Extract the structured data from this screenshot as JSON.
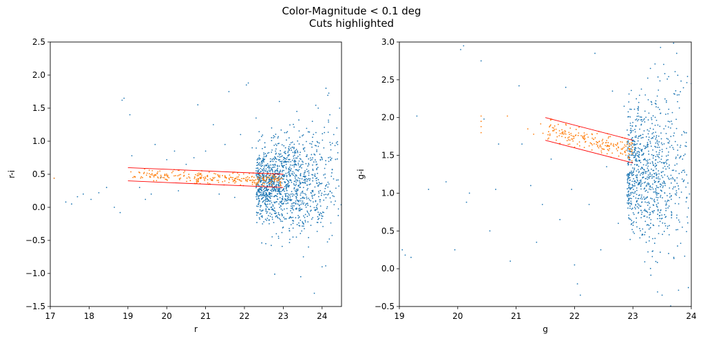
{
  "figure": {
    "title_line1": "Color-Magnitude < 0.1 deg",
    "title_line2": "Cuts highlighted"
  },
  "colors": {
    "all_stars": "#1f77b4",
    "selected_stars": "#ff7f0e",
    "cut_lines": "#ff0000"
  },
  "chart_data": [
    {
      "type": "scatter",
      "xlabel": "r",
      "ylabel": "r-i",
      "xlim": [
        17,
        24.5
      ],
      "ylim": [
        -1.5,
        2.5
      ],
      "x_ticks": [
        "17",
        "18",
        "19",
        "20",
        "21",
        "22",
        "23",
        "24"
      ],
      "y_ticks": [
        "−1.5",
        "−1.0",
        "−0.5",
        "0.0",
        "0.5",
        "1.0",
        "1.5",
        "2.0",
        "2.5"
      ],
      "grid": false,
      "cut_lines": [
        {
          "x": [
            19,
            23
          ],
          "y": [
            0.6,
            0.5
          ]
        },
        {
          "x": [
            19,
            23
          ],
          "y": [
            0.4,
            0.3
          ]
        }
      ],
      "series": [
        {
          "points": [
            [
              17.1,
              0.44
            ],
            [
              17.4,
              0.08
            ],
            [
              17.55,
              0.05
            ],
            [
              17.7,
              0.16
            ],
            [
              17.85,
              0.2
            ],
            [
              18.05,
              0.12
            ],
            [
              18.25,
              0.22
            ],
            [
              18.45,
              0.3
            ],
            [
              18.65,
              0.0
            ],
            [
              18.8,
              -0.08
            ],
            [
              18.85,
              1.62
            ],
            [
              18.9,
              1.65
            ],
            [
              19.05,
              1.4
            ],
            [
              19.1,
              0.78
            ],
            [
              19.3,
              0.3
            ],
            [
              19.45,
              0.12
            ],
            [
              19.6,
              0.2
            ],
            [
              19.7,
              0.95
            ],
            [
              19.85,
              0.45
            ],
            [
              20.0,
              0.72
            ],
            [
              20.2,
              0.85
            ],
            [
              20.3,
              0.25
            ],
            [
              20.5,
              0.65
            ],
            [
              20.7,
              0.75
            ],
            [
              20.8,
              1.55
            ],
            [
              21.0,
              0.85
            ],
            [
              21.2,
              1.25
            ],
            [
              21.35,
              0.2
            ],
            [
              21.5,
              0.95
            ],
            [
              21.6,
              1.75
            ],
            [
              21.75,
              0.15
            ],
            [
              21.9,
              1.1
            ],
            [
              22.05,
              1.85
            ],
            [
              22.1,
              1.88
            ],
            [
              22.2,
              0.9
            ],
            [
              22.3,
              1.35
            ],
            [
              22.45,
              0.22
            ],
            [
              22.55,
              -0.55
            ],
            [
              22.7,
              1.2
            ],
            [
              22.8,
              0.85
            ],
            [
              22.9,
              1.6
            ],
            [
              23.0,
              -0.3
            ],
            [
              23.05,
              0.7
            ],
            [
              23.15,
              1.05
            ],
            [
              23.25,
              -0.45
            ],
            [
              23.35,
              1.45
            ],
            [
              23.45,
              -1.05
            ],
            [
              23.55,
              0.85
            ],
            [
              23.65,
              -0.6
            ],
            [
              23.75,
              1.3
            ],
            [
              23.8,
              -1.3
            ],
            [
              23.9,
              1.5
            ],
            [
              24.0,
              -0.9
            ],
            [
              24.1,
              1.8
            ],
            [
              24.2,
              1.4
            ],
            [
              24.3,
              1.1
            ],
            [
              24.4,
              0.95
            ],
            [
              24.45,
              1.5
            ]
          ],
          "cloud": {
            "x_range": [
              22.3,
              24.5
            ],
            "y_center": 0.35,
            "y_spread": 0.45,
            "count": 1300
          }
        },
        {
          "band": {
            "x_range": [
              19.0,
              23.0
            ],
            "upper": [
              0.6,
              0.5
            ],
            "lower": [
              0.4,
              0.3
            ],
            "count": 280
          },
          "extra_points": [
            [
              17.1,
              0.44
            ]
          ]
        }
      ]
    },
    {
      "type": "scatter",
      "xlabel": "g",
      "ylabel": "g-i",
      "xlim": [
        19,
        24
      ],
      "ylim": [
        -0.5,
        3.0
      ],
      "x_ticks": [
        "19",
        "20",
        "21",
        "22",
        "23",
        "24"
      ],
      "y_ticks": [
        "−0.5",
        "0.0",
        "0.5",
        "1.0",
        "1.5",
        "2.0",
        "2.5",
        "3.0"
      ],
      "grid": false,
      "cut_lines": [
        {
          "x": [
            21.5,
            23
          ],
          "y": [
            2.0,
            1.7
          ]
        },
        {
          "x": [
            21.5,
            23
          ],
          "y": [
            1.7,
            1.4
          ]
        }
      ],
      "series": [
        {
          "points": [
            [
              19.05,
              0.25
            ],
            [
              19.1,
              0.18
            ],
            [
              19.2,
              0.15
            ],
            [
              19.3,
              2.02
            ],
            [
              19.5,
              1.05
            ],
            [
              19.8,
              1.15
            ],
            [
              19.95,
              0.25
            ],
            [
              20.05,
              2.9
            ],
            [
              20.1,
              2.95
            ],
            [
              20.15,
              0.88
            ],
            [
              20.2,
              1.0
            ],
            [
              20.4,
              2.75
            ],
            [
              20.45,
              1.98
            ],
            [
              20.55,
              0.5
            ],
            [
              20.65,
              1.05
            ],
            [
              20.7,
              1.65
            ],
            [
              20.9,
              0.1
            ],
            [
              21.05,
              2.42
            ],
            [
              21.1,
              1.65
            ],
            [
              21.25,
              1.1
            ],
            [
              21.35,
              0.35
            ],
            [
              21.45,
              0.85
            ],
            [
              21.6,
              1.45
            ],
            [
              21.75,
              0.65
            ],
            [
              21.85,
              2.4
            ],
            [
              21.95,
              1.05
            ],
            [
              22.0,
              0.05
            ],
            [
              22.05,
              -0.2
            ],
            [
              22.1,
              -0.35
            ],
            [
              22.25,
              0.85
            ],
            [
              22.35,
              2.85
            ],
            [
              22.45,
              0.25
            ],
            [
              22.55,
              1.35
            ],
            [
              22.65,
              2.35
            ],
            [
              22.75,
              0.6
            ],
            [
              22.85,
              2.15
            ],
            [
              22.95,
              0.8
            ],
            [
              23.0,
              1.65
            ],
            [
              23.1,
              2.2
            ],
            [
              23.2,
              0.45
            ],
            [
              23.3,
              2.65
            ],
            [
              23.4,
              1.2
            ],
            [
              23.5,
              -0.35
            ],
            [
              23.6,
              2.05
            ],
            [
              23.7,
              0.15
            ],
            [
              23.75,
              2.85
            ],
            [
              23.85,
              1.45
            ],
            [
              23.95,
              -0.25
            ],
            [
              24.0,
              2.45
            ]
          ],
          "cloud": {
            "x_range": [
              22.9,
              24.0
            ],
            "y_center": 1.3,
            "y_spread": 0.65,
            "count": 900
          }
        },
        {
          "band": {
            "x_range": [
              21.4,
              23.0
            ],
            "upper": [
              2.02,
              1.7
            ],
            "lower": [
              1.72,
              1.4
            ],
            "count": 200
          },
          "extra_points": [
            [
              20.4,
              1.95
            ],
            [
              20.4,
              2.02
            ],
            [
              20.4,
              1.88
            ],
            [
              20.4,
              1.8
            ],
            [
              20.85,
              2.02
            ],
            [
              21.2,
              1.85
            ],
            [
              21.3,
              1.78
            ]
          ]
        }
      ]
    }
  ]
}
